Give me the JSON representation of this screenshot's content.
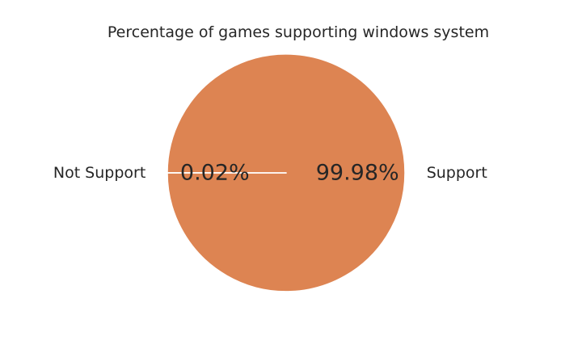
{
  "chart_data": {
    "type": "pie",
    "title": "Percentage of games supporting windows system",
    "slices": [
      {
        "label": "Support",
        "value": 99.98,
        "pct_label": "99.98%",
        "color": "#dd8452"
      },
      {
        "label": "Not Support",
        "value": 0.02,
        "pct_label": "0.02%",
        "color": "#4c72b0"
      }
    ],
    "start_angle_deg": 180,
    "wedge_edge_color": "#ffffff",
    "legend": "none"
  }
}
